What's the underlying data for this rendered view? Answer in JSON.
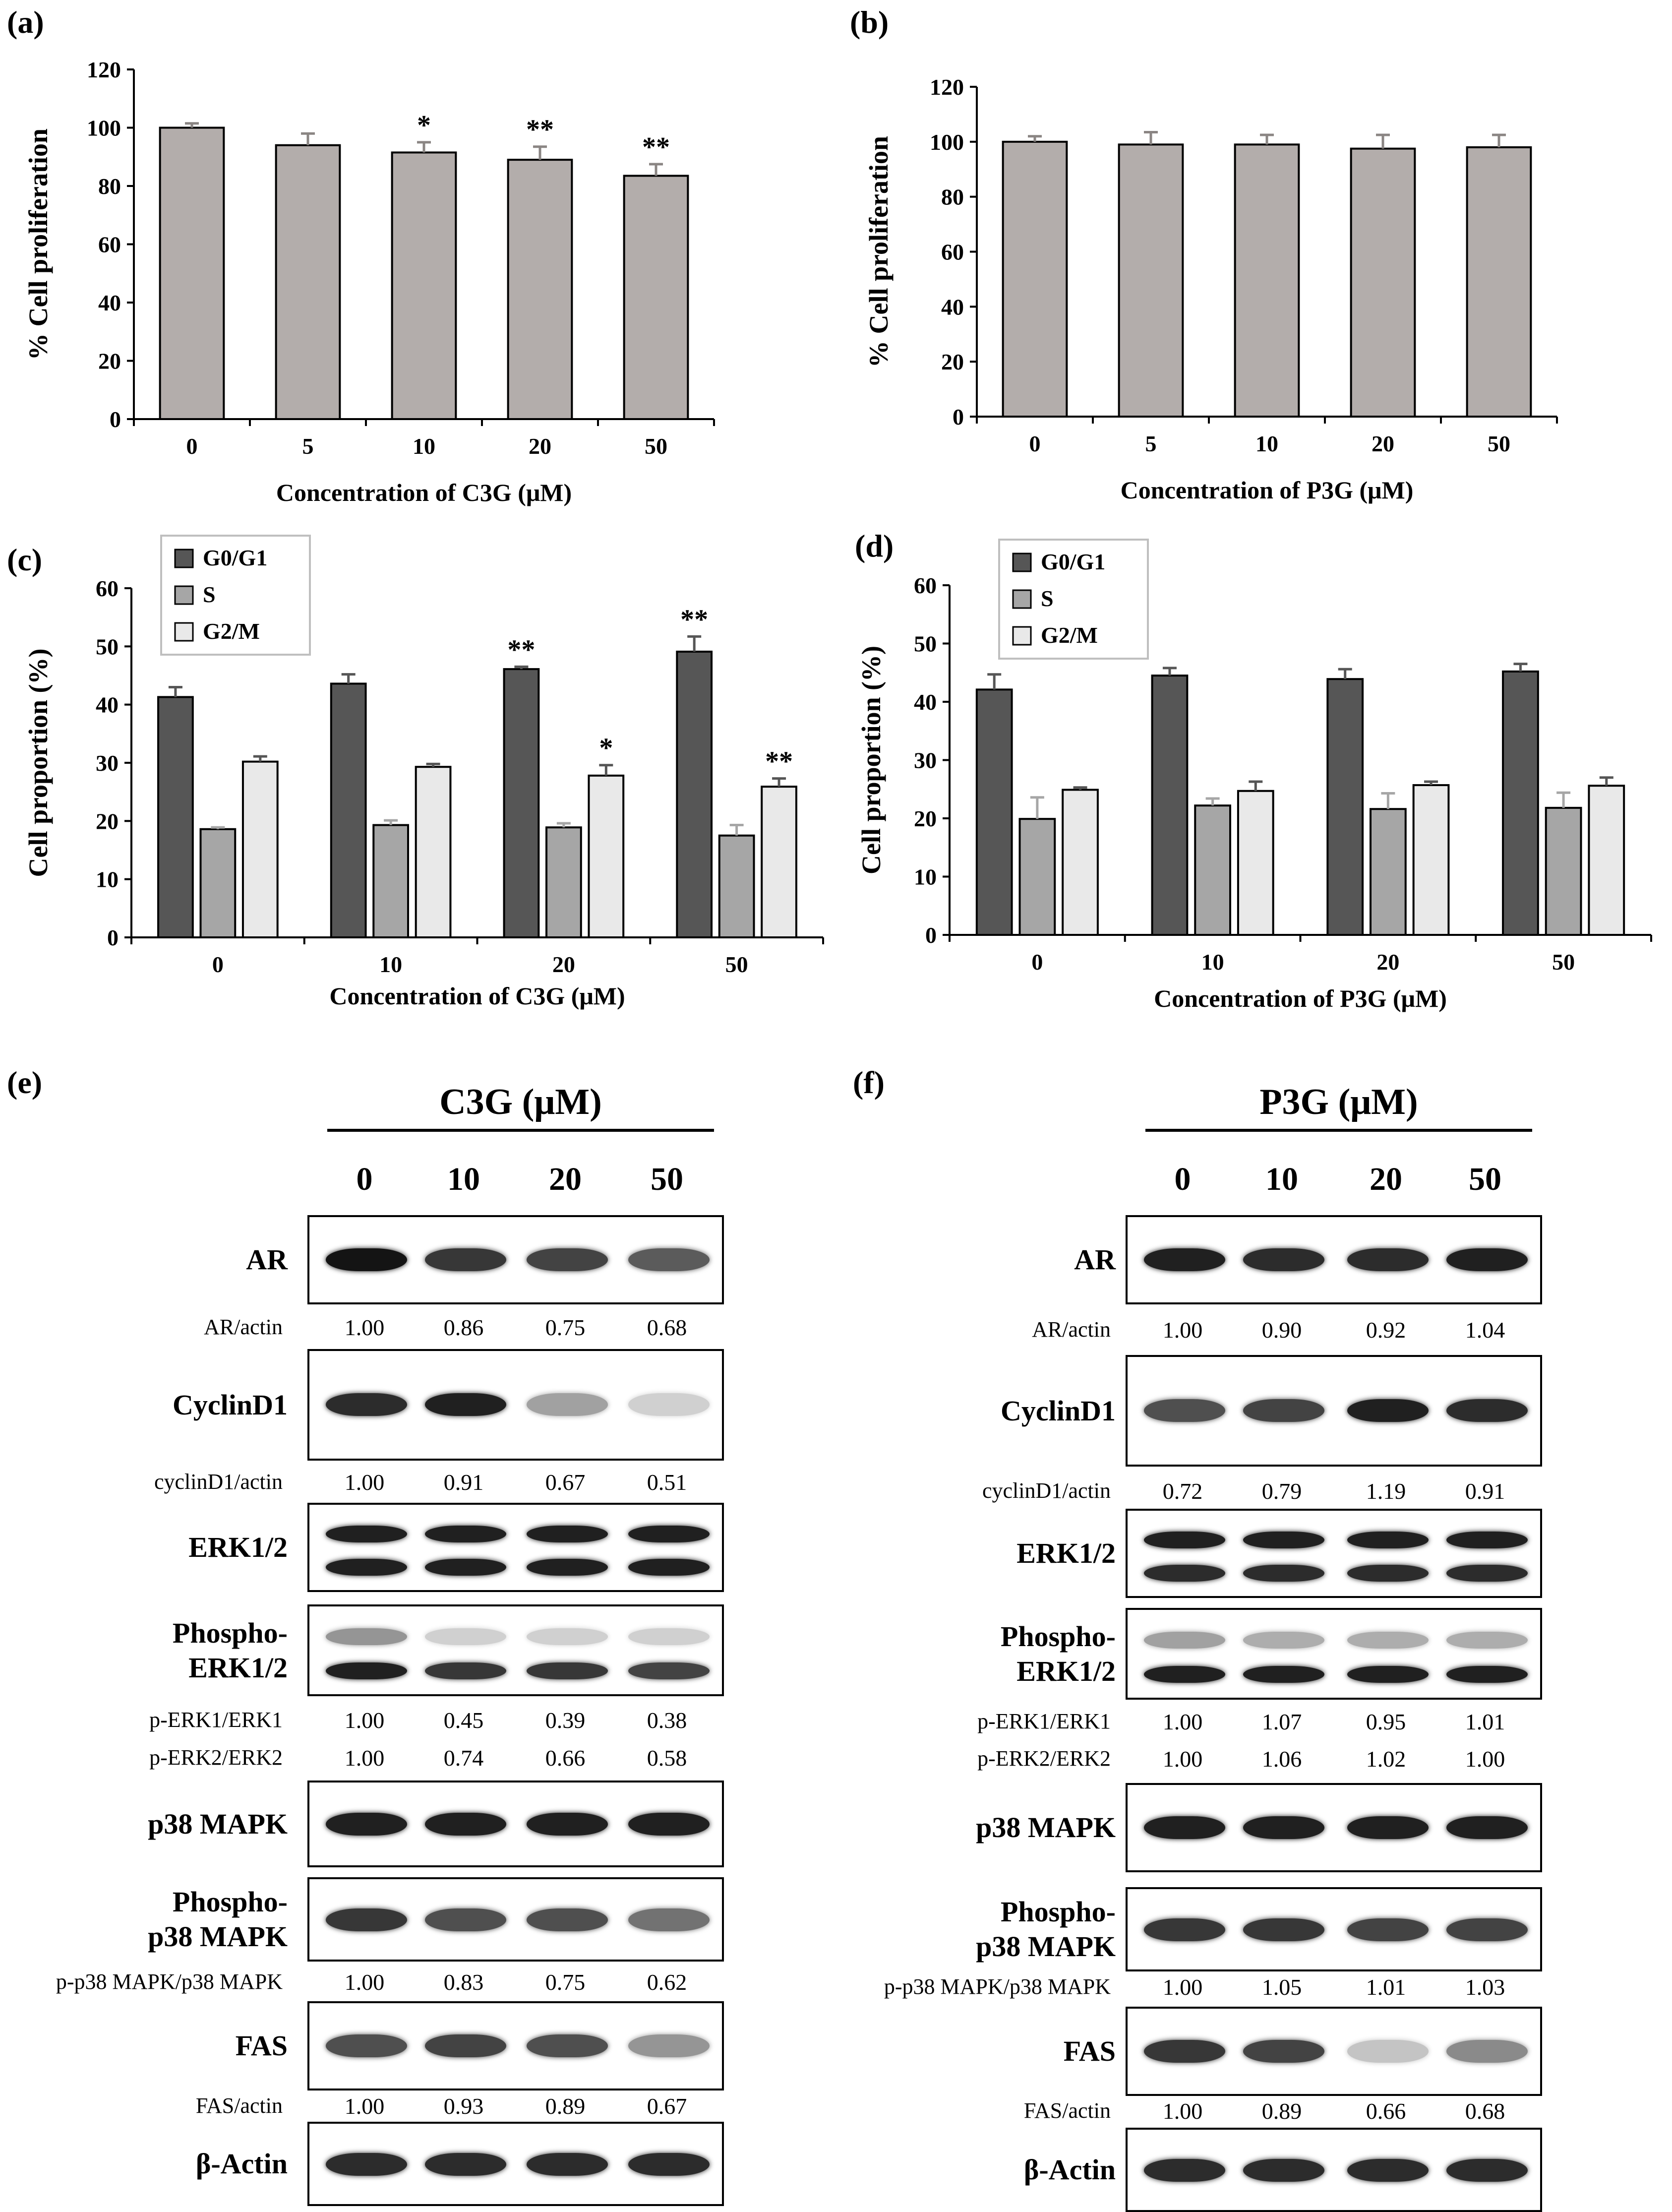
{
  "panel_labels": {
    "a": "(a)",
    "b": "(b)",
    "c": "(c)",
    "d": "(d)",
    "e": "(e)",
    "f": "(f)"
  },
  "colors": {
    "bar_fill": "#b3adab",
    "g0g1": "#565656",
    "s": "#a6a6a6",
    "g2m": "#e9e9e9",
    "axis": "#000000"
  },
  "chart_data": [
    {
      "id": "a",
      "type": "bar",
      "categories": [
        "0",
        "5",
        "10",
        "20",
        "50"
      ],
      "values": [
        100,
        94,
        91.5,
        89,
        83.5
      ],
      "errors": [
        1.5,
        4,
        3.5,
        4.5,
        4
      ],
      "significance": [
        "",
        "",
        "*",
        "**",
        "**"
      ],
      "ylim": [
        0,
        120
      ],
      "yticks": [
        0,
        20,
        40,
        60,
        80,
        100,
        120
      ],
      "ytick_labels": [
        "0",
        "20",
        "40",
        "60",
        "80",
        "100",
        "120"
      ],
      "xlabel": "Concentration of C3G (μM)",
      "ylabel": "% Cell proliferation"
    },
    {
      "id": "b",
      "type": "bar",
      "categories": [
        "0",
        "5",
        "10",
        "20",
        "50"
      ],
      "values": [
        100,
        99,
        99,
        97.5,
        98
      ],
      "errors": [
        2,
        4.5,
        3.5,
        5,
        4.5
      ],
      "significance": [
        "",
        "",
        "",
        "",
        ""
      ],
      "ylim": [
        0,
        120
      ],
      "yticks": [
        0,
        20,
        40,
        60,
        80,
        100,
        120
      ],
      "ytick_labels": [
        "0",
        "20",
        "40",
        "60",
        "80",
        "100",
        "120"
      ],
      "xlabel": "Concentration of P3G (μM)",
      "ylabel": "% Cell proliferation"
    },
    {
      "id": "c",
      "type": "bar",
      "categories": [
        "0",
        "10",
        "20",
        "50"
      ],
      "series": [
        {
          "name": "G0/G1",
          "values": [
            41.3,
            43.6,
            46.1,
            49.1
          ],
          "errors": [
            1.7,
            1.6,
            0.4,
            2.6
          ],
          "significance": [
            "",
            "",
            "**",
            "**"
          ]
        },
        {
          "name": "S",
          "values": [
            18.6,
            19.3,
            18.9,
            17.5
          ],
          "errors": [
            0.3,
            0.8,
            0.7,
            1.8
          ],
          "significance": [
            "",
            "",
            "",
            ""
          ]
        },
        {
          "name": "G2/M",
          "values": [
            30.2,
            29.3,
            27.8,
            25.9
          ],
          "errors": [
            0.9,
            0.5,
            1.8,
            1.4
          ],
          "significance": [
            "",
            "",
            "*",
            "**"
          ]
        }
      ],
      "ylim": [
        0,
        60
      ],
      "yticks": [
        0,
        10,
        20,
        30,
        40,
        50,
        60
      ],
      "ytick_labels": [
        "0",
        "10",
        "20",
        "30",
        "40",
        "50",
        "60"
      ],
      "xlabel": "Concentration of C3G (μM)",
      "ylabel": "Cell proportion (%)"
    },
    {
      "id": "d",
      "type": "bar",
      "categories": [
        "0",
        "10",
        "20",
        "50"
      ],
      "series": [
        {
          "name": "G0/G1",
          "values": [
            42.1,
            44.5,
            43.9,
            45.2
          ],
          "errors": [
            2.6,
            1.3,
            1.7,
            1.3
          ],
          "significance": [
            "",
            "",
            "",
            ""
          ]
        },
        {
          "name": "S",
          "values": [
            19.9,
            22.2,
            21.6,
            21.8
          ],
          "errors": [
            3.7,
            1.2,
            2.7,
            2.6
          ],
          "significance": [
            "",
            "",
            "",
            ""
          ]
        },
        {
          "name": "G2/M",
          "values": [
            24.9,
            24.7,
            25.7,
            25.6
          ],
          "errors": [
            0.4,
            1.6,
            0.6,
            1.4
          ],
          "significance": [
            "",
            "",
            "",
            ""
          ]
        }
      ],
      "ylim": [
        0,
        60
      ],
      "yticks": [
        0,
        10,
        20,
        30,
        40,
        50,
        60
      ],
      "ytick_labels": [
        "0",
        "10",
        "20",
        "30",
        "40",
        "50",
        "60"
      ],
      "xlabel": "Concentration of P3G (μM)",
      "ylabel": "Cell proportion (%)"
    }
  ],
  "western_blots": [
    {
      "id": "e",
      "header": "C3G (μM)",
      "lanes": [
        "0",
        "10",
        "20",
        "50"
      ],
      "proteins": {
        "ar": "AR",
        "cyclind1": "CyclinD1",
        "erk": "ERK1/2",
        "perk": "Phospho-\nERK1/2",
        "p38": "p38 MAPK",
        "pp38": "Phospho-\np38 MAPK",
        "fas": "FAS",
        "actin": "β-Actin"
      },
      "ratios": {
        "ar": {
          "label": "AR/actin",
          "values": [
            "1.00",
            "0.86",
            "0.75",
            "0.68"
          ]
        },
        "cyclind1": {
          "label": "cyclinD1/actin",
          "values": [
            "1.00",
            "0.91",
            "0.67",
            "0.51"
          ]
        },
        "perk1": {
          "label": "p-ERK1/ERK1",
          "values": [
            "1.00",
            "0.45",
            "0.39",
            "0.38"
          ]
        },
        "perk2": {
          "label": "p-ERK2/ERK2",
          "values": [
            "1.00",
            "0.74",
            "0.66",
            "0.58"
          ]
        },
        "pp38": {
          "label": "p-p38 MAPK/p38 MAPK",
          "values": [
            "1.00",
            "0.83",
            "0.75",
            "0.62"
          ]
        },
        "fas": {
          "label": "FAS/actin",
          "values": [
            "1.00",
            "0.93",
            "0.89",
            "0.67"
          ]
        }
      }
    },
    {
      "id": "f",
      "header": "P3G (μM)",
      "lanes": [
        "0",
        "10",
        "20",
        "50"
      ],
      "proteins": {
        "ar": "AR",
        "cyclind1": "CyclinD1",
        "erk": "ERK1/2",
        "perk": "Phospho-\nERK1/2",
        "p38": "p38 MAPK",
        "pp38": "Phospho-\np38 MAPK",
        "fas": "FAS",
        "actin": "β-Actin"
      },
      "ratios": {
        "ar": {
          "label": "AR/actin",
          "values": [
            "1.00",
            "0.90",
            "0.92",
            "1.04"
          ]
        },
        "cyclind1": {
          "label": "cyclinD1/actin",
          "values": [
            "0.72",
            "0.79",
            "1.19",
            "0.91"
          ]
        },
        "perk1": {
          "label": "p-ERK1/ERK1",
          "values": [
            "1.00",
            "1.07",
            "0.95",
            "1.01"
          ]
        },
        "perk2": {
          "label": "p-ERK2/ERK2",
          "values": [
            "1.00",
            "1.06",
            "1.02",
            "1.00"
          ]
        },
        "pp38": {
          "label": "p-p38 MAPK/p38 MAPK",
          "values": [
            "1.00",
            "1.05",
            "1.01",
            "1.03"
          ]
        },
        "fas": {
          "label": "FAS/actin",
          "values": [
            "1.00",
            "0.89",
            "0.66",
            "0.68"
          ]
        }
      }
    }
  ]
}
